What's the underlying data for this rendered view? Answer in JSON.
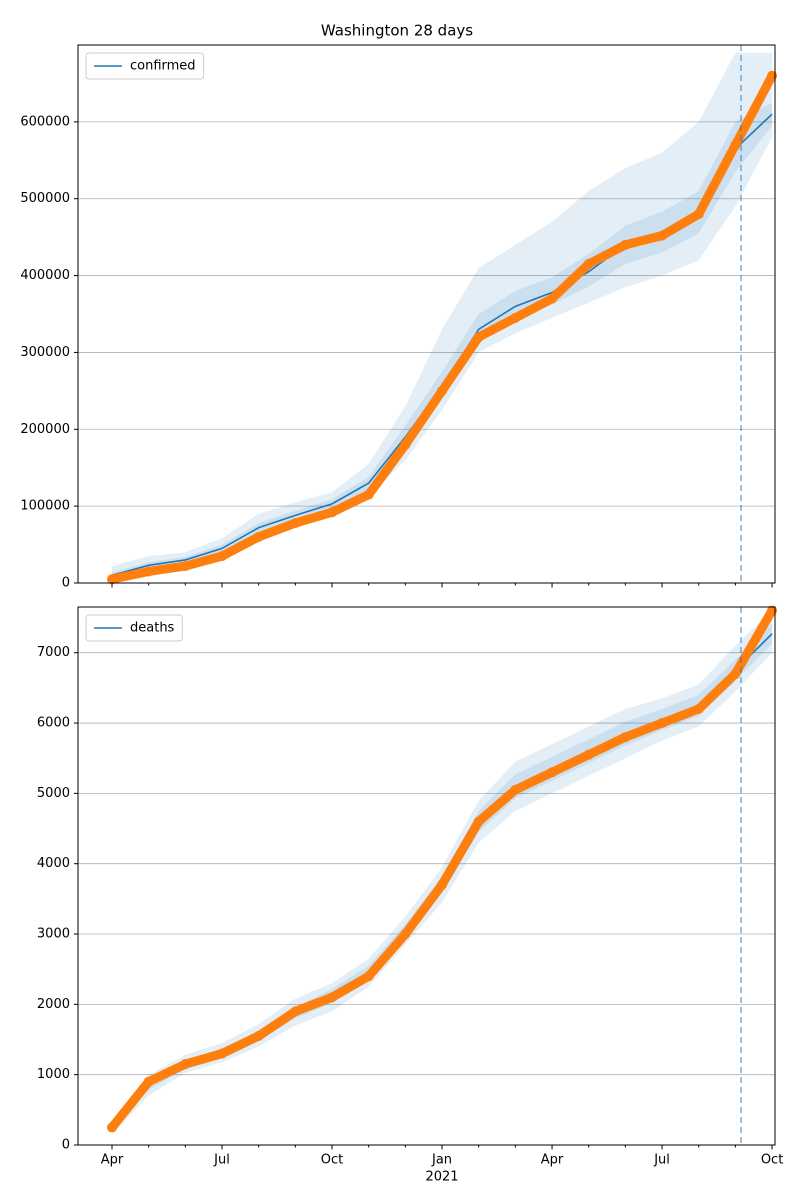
{
  "chart_data": [
    {
      "type": "line",
      "title": "Washington 28 days",
      "series": [
        {
          "name": "confirmed",
          "color": "#1f77b4",
          "values": [
            10000,
            23000,
            30000,
            45000,
            72000,
            88000,
            103000,
            130000,
            190000,
            255000,
            330000,
            360000,
            378000,
            405000,
            440000,
            455000,
            480000,
            565000,
            610000
          ]
        }
      ],
      "observed_values": [
        5000,
        15000,
        22000,
        35000,
        60000,
        78000,
        92000,
        115000,
        180000,
        250000,
        320000,
        345000,
        370000,
        415000,
        440000,
        452000,
        480000,
        570000,
        660000
      ],
      "observed_color": "#ff7f0e",
      "band_color": "#1f77b4",
      "bands": [
        {
          "lower": [
            2000,
            15000,
            22000,
            33000,
            58000,
            75000,
            90000,
            112000,
            160000,
            225000,
            300000,
            325000,
            345000,
            365000,
            385000,
            400000,
            420000,
            490000,
            580000
          ],
          "upper": [
            22000,
            35000,
            40000,
            58000,
            90000,
            105000,
            118000,
            155000,
            230000,
            330000,
            410000,
            440000,
            470000,
            510000,
            540000,
            560000,
            600000,
            690000,
            690000
          ]
        },
        {
          "lower": [
            6000,
            19000,
            26000,
            40000,
            66000,
            82000,
            97000,
            122000,
            177000,
            242000,
            316000,
            343000,
            362000,
            386000,
            415000,
            430000,
            455000,
            535000,
            595000
          ],
          "upper": [
            14000,
            27000,
            34000,
            50000,
            78000,
            94000,
            109000,
            138000,
            205000,
            275000,
            350000,
            380000,
            398000,
            428000,
            465000,
            483000,
            510000,
            600000,
            625000
          ]
        }
      ],
      "ylim": [
        0,
        700000
      ],
      "yticks": [
        0,
        100000,
        200000,
        300000,
        400000,
        500000,
        600000
      ],
      "grid": true,
      "legend": "upper left"
    },
    {
      "type": "line",
      "categories": [
        "Apr",
        null,
        null,
        "Jul",
        null,
        null,
        "Oct",
        null,
        null,
        "Jan",
        null,
        null,
        "Apr",
        null,
        null,
        "Jul",
        null,
        null,
        "Oct"
      ],
      "x_sublabel": "2021",
      "series": [
        {
          "name": "deaths",
          "color": "#1f77b4",
          "values": [
            250,
            850,
            1150,
            1300,
            1550,
            1880,
            2120,
            2450,
            3050,
            3700,
            4600,
            5100,
            5350,
            5600,
            5850,
            6050,
            6250,
            6750,
            7270
          ]
        }
      ],
      "observed_values": [
        250,
        900,
        1150,
        1300,
        1550,
        1900,
        2100,
        2400,
        3000,
        3700,
        4600,
        5050,
        5300,
        5550,
        5800,
        6000,
        6200,
        6700,
        7600
      ],
      "observed_color": "#ff7f0e",
      "band_color": "#1f77b4",
      "bands": [
        {
          "lower": [
            150,
            700,
            1030,
            1180,
            1400,
            1700,
            1900,
            2250,
            2850,
            3450,
            4300,
            4750,
            5000,
            5250,
            5500,
            5750,
            5950,
            6450,
            7000
          ],
          "upper": [
            350,
            1000,
            1280,
            1450,
            1720,
            2080,
            2300,
            2650,
            3250,
            3950,
            4900,
            5450,
            5700,
            5950,
            6200,
            6350,
            6550,
            7100,
            7600
          ]
        },
        {
          "lower": [
            200,
            780,
            1090,
            1240,
            1480,
            1800,
            2020,
            2350,
            2960,
            3580,
            4450,
            4930,
            5180,
            5430,
            5680,
            5900,
            6100,
            6600,
            7130
          ],
          "upper": [
            300,
            920,
            1210,
            1370,
            1630,
            1960,
            2220,
            2550,
            3140,
            3820,
            4750,
            5270,
            5520,
            5770,
            6020,
            6200,
            6400,
            6900,
            7420
          ]
        }
      ],
      "ylim": [
        0,
        7650
      ],
      "yticks": [
        0,
        1000,
        2000,
        3000,
        4000,
        5000,
        6000,
        7000
      ],
      "grid": true,
      "legend": "upper left"
    }
  ]
}
